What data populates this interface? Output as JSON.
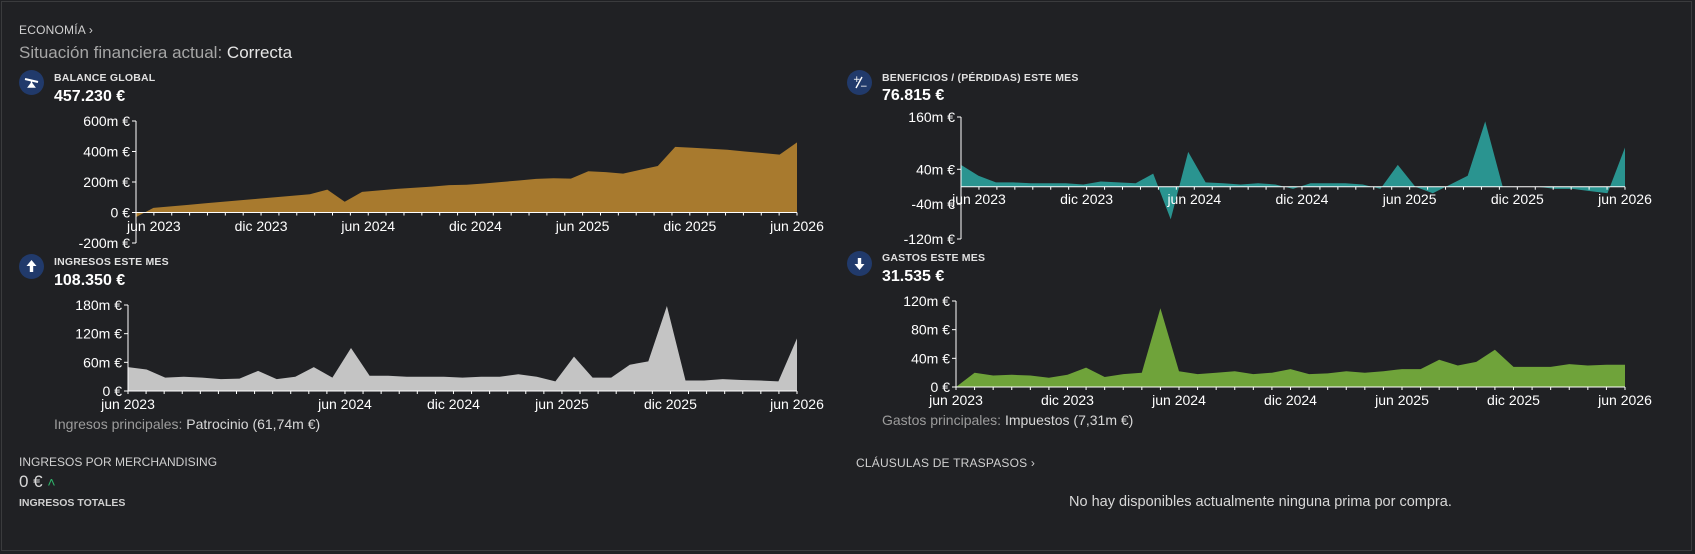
{
  "header": {
    "breadcrumb": "ECONOMÍA",
    "status_label": "Situación financiera actual:",
    "status_value": "Correcta"
  },
  "icons": {
    "balance": "scale-icon",
    "profit": "plus-minus-icon",
    "income": "arrow-up-icon",
    "expenses": "arrow-down-icon"
  },
  "panels": {
    "balance": {
      "label": "BALANCE GLOBAL",
      "value": "457.230 €"
    },
    "profit": {
      "label": "BENEFICIOS / (PÉRDIDAS) ESTE MES",
      "value": "76.815 €"
    },
    "income": {
      "label": "INGRESOS ESTE MES",
      "value": "108.350 €",
      "main_label": "Ingresos principales:",
      "main_value": "Patrocinio (61,74m €)"
    },
    "expenses": {
      "label": "GASTOS ESTE MES",
      "value": "31.535 €",
      "main_label": "Gastos principales:",
      "main_value": "Impuestos (7,31m €)"
    }
  },
  "merch": {
    "label": "INGRESOS POR MERCHANDISING",
    "value": "0 €",
    "sub_label": "INGRESOS TOTALES"
  },
  "clauses": {
    "label": "CLÁUSULAS DE TRASPASOS",
    "empty_message": "No hay disponibles actualmente ninguna prima por compra."
  },
  "colors": {
    "balance": "#a87a2e",
    "profit": "#2a9490",
    "income": "#c4c4c4",
    "expenses": "#6fa33a",
    "icon_bg": "#213a6b"
  },
  "chart_data": [
    {
      "id": "balance",
      "type": "area",
      "x_range": [
        0,
        37
      ],
      "ylim": [
        -200,
        600
      ],
      "y_ticks": [
        600,
        400,
        200,
        0,
        -200
      ],
      "y_tick_labels": [
        "600m €",
        "400m €",
        "200m €",
        "0 €",
        "-200m €"
      ],
      "x_ticks": [
        1,
        7,
        13,
        19,
        25,
        31,
        37
      ],
      "x_tick_labels": [
        "jun 2023",
        "dic 2023",
        "jun 2024",
        "dic 2024",
        "jun 2025",
        "dic 2025",
        "jun 2026"
      ],
      "unit": "m €",
      "values": [
        -30,
        30,
        40,
        50,
        60,
        70,
        80,
        90,
        100,
        110,
        120,
        150,
        70,
        135,
        145,
        155,
        162,
        170,
        180,
        182,
        190,
        200,
        210,
        220,
        225,
        222,
        270,
        265,
        255,
        280,
        305,
        430,
        425,
        418,
        412,
        400,
        390,
        380,
        460
      ]
    },
    {
      "id": "profit",
      "type": "area",
      "x_range": [
        0,
        37
      ],
      "ylim": [
        -120,
        160
      ],
      "y_ticks": [
        160,
        40,
        -40,
        -120
      ],
      "y_tick_labels": [
        "160m €",
        "40m €",
        "-40m €",
        "-120m €"
      ],
      "x_ticks": [
        1,
        7,
        13,
        19,
        25,
        31,
        37
      ],
      "x_tick_labels": [
        "jun 2023",
        "dic 2023",
        "jun 2024",
        "dic 2024",
        "jun 2025",
        "dic 2025",
        "jun 2026"
      ],
      "unit": "m €",
      "values": [
        50,
        25,
        10,
        10,
        8,
        8,
        8,
        5,
        12,
        10,
        8,
        30,
        -75,
        80,
        10,
        8,
        5,
        8,
        5,
        -5,
        8,
        8,
        8,
        5,
        -5,
        50,
        0,
        -15,
        5,
        25,
        150,
        0,
        0,
        0,
        -5,
        -5,
        -10,
        -15,
        90
      ]
    },
    {
      "id": "income",
      "type": "area",
      "x_range": [
        0,
        37
      ],
      "ylim": [
        0,
        180
      ],
      "y_ticks": [
        180,
        120,
        60,
        0
      ],
      "y_tick_labels": [
        "180m €",
        "120m €",
        "60m €",
        "0 €"
      ],
      "x_ticks": [
        0,
        12,
        18,
        24,
        30,
        37
      ],
      "x_tick_labels": [
        "jun 2023",
        "jun 2024",
        "dic 2024",
        "jun 2025",
        "dic 2025",
        "jun 2026"
      ],
      "unit": "m €",
      "values": [
        50,
        45,
        28,
        30,
        28,
        25,
        26,
        42,
        25,
        30,
        50,
        28,
        90,
        32,
        32,
        30,
        30,
        30,
        28,
        30,
        30,
        35,
        30,
        20,
        72,
        28,
        28,
        55,
        62,
        178,
        22,
        22,
        25,
        23,
        22,
        20,
        110
      ]
    },
    {
      "id": "expenses",
      "type": "area",
      "x_range": [
        0,
        36
      ],
      "ylim": [
        0,
        120
      ],
      "y_ticks": [
        120,
        80,
        40,
        0
      ],
      "y_tick_labels": [
        "120m €",
        "80m €",
        "40m €",
        "0 €"
      ],
      "x_ticks": [
        0,
        6,
        12,
        18,
        24,
        30,
        36
      ],
      "x_tick_labels": [
        "jun 2023",
        "dic 2023",
        "jun 2024",
        "dic 2024",
        "jun 2025",
        "dic 2025",
        "jun 2026"
      ],
      "unit": "m €",
      "values": [
        0,
        20,
        16,
        17,
        16,
        13,
        17,
        27,
        14,
        18,
        20,
        110,
        22,
        18,
        20,
        22,
        18,
        20,
        25,
        18,
        19,
        22,
        20,
        22,
        25,
        25,
        38,
        30,
        35,
        52,
        28,
        28,
        28,
        32,
        30,
        31,
        31
      ]
    }
  ]
}
